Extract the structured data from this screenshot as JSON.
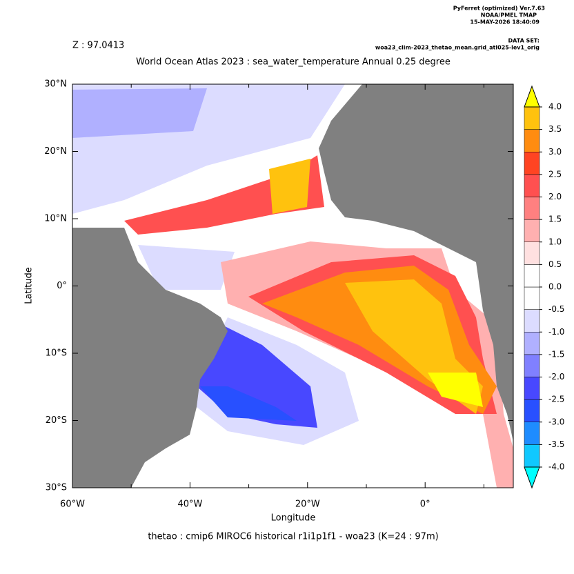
{
  "header": {
    "program": "PyFerret (optimized) Ver.7.63",
    "org": "NOAA/PMEL TMAP",
    "date": "15-MAY-2026 18:40:09",
    "dataset_label": "DATA SET:",
    "dataset": "woa23_clim-2023_thetao_mean.grid_atl025-lev1_orig"
  },
  "chart_data": {
    "type": "map",
    "z_label": "Z : 97.0413",
    "title": "World Ocean Atlas 2023 : sea_water_temperature Annual  0.25 degree",
    "subtitle": "thetao : cmip6 MIROC6 historical r1i1p1f1 - woa23  (K=24 : 97m)",
    "xlabel": "Longitude",
    "ylabel": "Latitude",
    "xlim": [
      -60,
      15
    ],
    "ylim": [
      -30,
      30
    ],
    "xticks": [
      {
        "value": -60,
        "label": "60°W"
      },
      {
        "value": -40,
        "label": "40°W"
      },
      {
        "value": -20,
        "label": "20°W"
      },
      {
        "value": 0,
        "label": "0°"
      }
    ],
    "xminorticks": [
      -50,
      -30,
      -10,
      10
    ],
    "yticks": [
      {
        "value": -30,
        "label": "30°S"
      },
      {
        "value": -20,
        "label": "20°S"
      },
      {
        "value": -10,
        "label": "10°S"
      },
      {
        "value": 0,
        "label": "0°"
      },
      {
        "value": 10,
        "label": "10°N"
      },
      {
        "value": 20,
        "label": "20°N"
      },
      {
        "value": 30,
        "label": "30°N"
      }
    ],
    "land_color": "#808080",
    "colorbar": {
      "levels": [
        {
          "value": -4,
          "label": "-4.0"
        },
        {
          "value": -3.5,
          "label": "-3.5"
        },
        {
          "value": -3,
          "label": "-3.0"
        },
        {
          "value": -2.5,
          "label": "-2.5"
        },
        {
          "value": -2,
          "label": "-2.0"
        },
        {
          "value": -1.5,
          "label": "-1.5"
        },
        {
          "value": -1,
          "label": "-1.0"
        },
        {
          "value": -0.5,
          "label": "-0.5"
        },
        {
          "value": 0,
          "label": "0.0"
        },
        {
          "value": 0.5,
          "label": "0.5"
        },
        {
          "value": 1,
          "label": "1.0"
        },
        {
          "value": 1.5,
          "label": "1.5"
        },
        {
          "value": 2,
          "label": "2.0"
        },
        {
          "value": 2.5,
          "label": "2.5"
        },
        {
          "value": 3,
          "label": "3.0"
        },
        {
          "value": 3.5,
          "label": "3.5"
        },
        {
          "value": 4,
          "label": "4.0"
        }
      ],
      "colors": [
        "#10c8ff",
        "#1e8cff",
        "#2850ff",
        "#4848ff",
        "#8080ff",
        "#b0b0ff",
        "#dcdcff",
        "#ffffff",
        "#ffffff",
        "#ffe0e0",
        "#ffb0b0",
        "#ff8080",
        "#ff5050",
        "#ff4422",
        "#ff8c10",
        "#ffc20e"
      ],
      "under_color": "#00ffff",
      "over_color": "#ffff00"
    }
  }
}
